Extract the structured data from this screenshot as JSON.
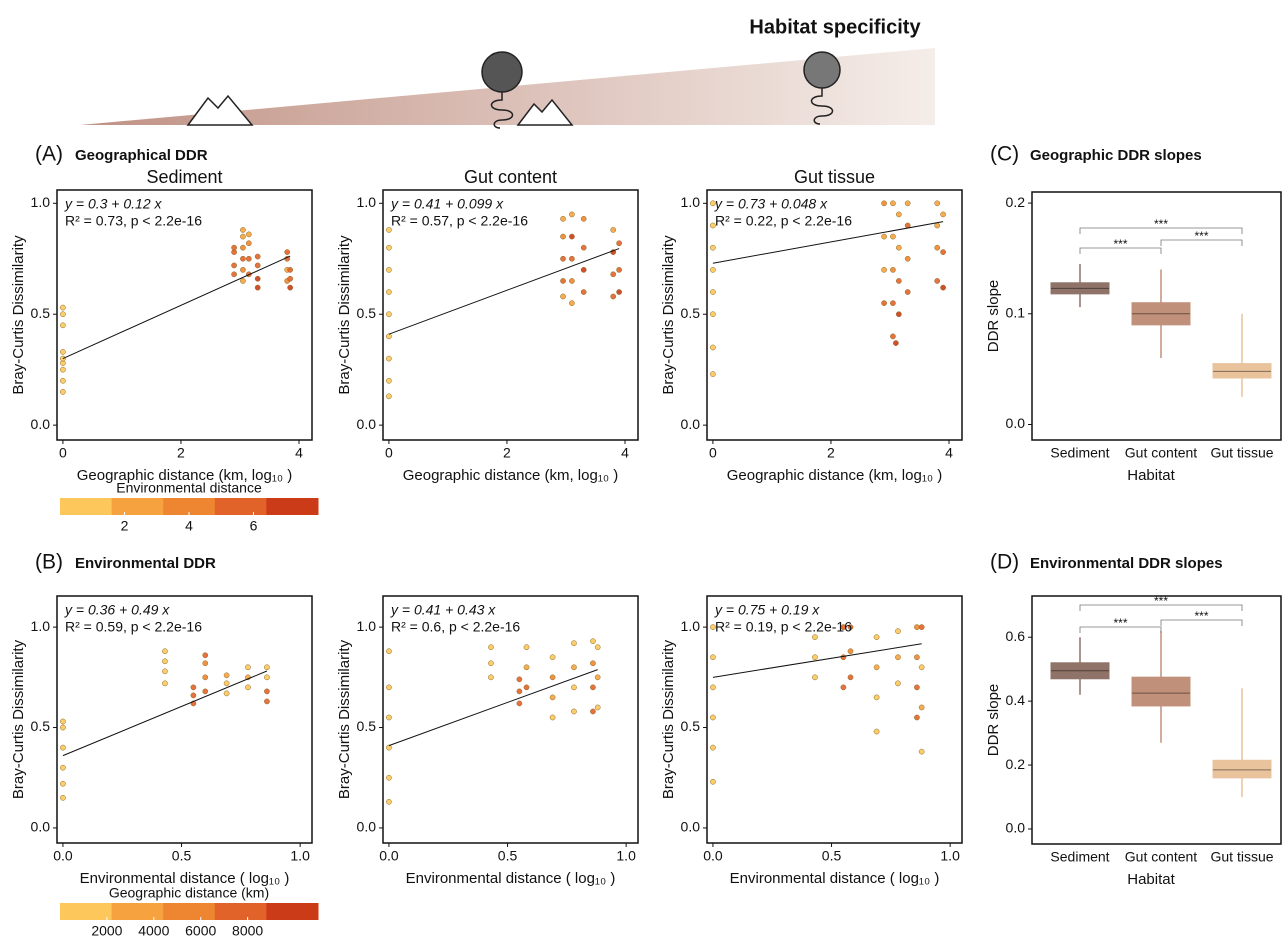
{
  "header": {
    "title": "Habitat specificity"
  },
  "panels": [
    {
      "letter": "(A)",
      "title": "Geographical DDR"
    },
    {
      "letter": "(B)",
      "title": "Environmental DDR"
    },
    {
      "letter": "(C)",
      "title": "Geographic DDR slopes"
    },
    {
      "letter": "(D)",
      "title": "Environmental DDR slopes"
    }
  ],
  "colorbars": [
    {
      "title": "Environmental distance",
      "lim": [
        0,
        8
      ],
      "ticks": [
        2,
        4,
        6
      ],
      "colors": [
        "#fdc75c",
        "#f6a33f",
        "#ee8530",
        "#e2632a",
        "#cc3b17"
      ]
    },
    {
      "title": "Geographic distance (km)",
      "lim": [
        0,
        11000
      ],
      "ticks": [
        2000,
        4000,
        6000,
        8000
      ],
      "colors": [
        "#fdc75c",
        "#f6a33f",
        "#ee8530",
        "#e2632a",
        "#cc3b17"
      ]
    }
  ],
  "chart_data": [
    {
      "type": "scatter",
      "title": "Sediment",
      "xlabel": "Geographic distance (km, log₁₀ )",
      "ylabel": "Bray-Curtis Dissimilarity",
      "annotations": [
        "y = 0.3 + 0.12 x",
        "R² = 0.73, p < 2.2e-16"
      ],
      "fit": {
        "intercept": 0.3,
        "slope": 0.12
      },
      "xlim": [
        -0.1,
        4.22
      ],
      "ylim": [
        -0.067,
        1.06
      ],
      "xticks": [
        0,
        2,
        4
      ],
      "yticks": [
        {
          "value": 0,
          "label": "0.0"
        },
        0.5,
        {
          "value": 1,
          "label": "1.0"
        }
      ],
      "x": [
        0,
        0,
        0,
        0,
        0,
        0,
        0,
        0,
        0,
        2.9,
        2.9,
        2.9,
        2.9,
        3.05,
        3.05,
        3.05,
        3.05,
        3.05,
        3.05,
        3.15,
        3.15,
        3.15,
        3.15,
        3.3,
        3.3,
        3.3,
        3.3,
        3.8,
        3.8,
        3.8,
        3.8,
        3.85,
        3.85,
        3.85
      ],
      "values": [
        0.15,
        0.2,
        0.25,
        0.28,
        0.3,
        0.33,
        0.45,
        0.5,
        0.53,
        0.68,
        0.72,
        0.78,
        0.8,
        0.65,
        0.7,
        0.75,
        0.8,
        0.85,
        0.88,
        0.68,
        0.75,
        0.82,
        0.86,
        0.62,
        0.66,
        0.72,
        0.76,
        0.65,
        0.7,
        0.75,
        0.78,
        0.62,
        0.66,
        0.7
      ],
      "color_values": [
        1,
        1,
        1,
        1,
        1,
        1,
        1,
        1,
        1,
        5,
        6,
        5,
        6,
        3,
        4,
        5,
        4,
        3,
        2,
        6,
        5,
        4,
        3,
        7,
        7,
        6,
        5,
        4,
        3,
        5,
        6,
        7,
        6,
        5
      ]
    },
    {
      "type": "scatter",
      "title": "Gut content",
      "xlabel": "Geographic distance (km, log₁₀ )",
      "ylabel": "Bray-Curtis Dissimilarity",
      "annotations": [
        "y = 0.41 + 0.099 x",
        "R² = 0.57, p < 2.2e-16"
      ],
      "fit": {
        "intercept": 0.41,
        "slope": 0.099
      },
      "xlim": [
        -0.1,
        4.22
      ],
      "ylim": [
        -0.067,
        1.06
      ],
      "xticks": [
        0,
        2,
        4
      ],
      "yticks": [
        {
          "value": 0,
          "label": "0.0"
        },
        0.5,
        {
          "value": 1,
          "label": "1.0"
        }
      ],
      "x": [
        0,
        0,
        0,
        0,
        0,
        0,
        0,
        0,
        0,
        2.95,
        2.95,
        2.95,
        2.95,
        2.95,
        3.1,
        3.1,
        3.1,
        3.1,
        3.1,
        3.3,
        3.3,
        3.3,
        3.3,
        3.8,
        3.8,
        3.8,
        3.8,
        3.9,
        3.9,
        3.9
      ],
      "values": [
        0.13,
        0.2,
        0.3,
        0.4,
        0.5,
        0.6,
        0.7,
        0.8,
        0.88,
        0.58,
        0.65,
        0.75,
        0.85,
        0.93,
        0.55,
        0.65,
        0.75,
        0.85,
        0.95,
        0.6,
        0.7,
        0.8,
        0.93,
        0.58,
        0.68,
        0.78,
        0.88,
        0.6,
        0.7,
        0.82
      ],
      "color_values": [
        1,
        1,
        1,
        1,
        1,
        1,
        1,
        1,
        1,
        3,
        5,
        6,
        4,
        2,
        2,
        4,
        6,
        7,
        3,
        6,
        7,
        5,
        4,
        5,
        6,
        7,
        3,
        7,
        6,
        5
      ]
    },
    {
      "type": "scatter",
      "title": "Gut tissue",
      "xlabel": "Geographic distance (km, log₁₀ )",
      "ylabel": "Bray-Curtis Dissimilarity",
      "annotations": [
        "y = 0.73 + 0.048 x",
        "R² = 0.22, p < 2.2e-16"
      ],
      "fit": {
        "intercept": 0.73,
        "slope": 0.048
      },
      "xlim": [
        -0.1,
        4.22
      ],
      "ylim": [
        -0.067,
        1.06
      ],
      "xticks": [
        0,
        2,
        4
      ],
      "yticks": [
        {
          "value": 0,
          "label": "0.0"
        },
        0.5,
        {
          "value": 1,
          "label": "1.0"
        }
      ],
      "x": [
        0,
        0,
        0,
        0,
        0,
        0,
        0,
        0,
        2.9,
        2.9,
        2.9,
        2.9,
        3.05,
        3.05,
        3.05,
        3.05,
        3.05,
        3.1,
        3.15,
        3.15,
        3.15,
        3.15,
        3.3,
        3.3,
        3.3,
        3.3,
        3.8,
        3.8,
        3.8,
        3.8,
        3.9,
        3.9,
        3.9
      ],
      "values": [
        0.23,
        0.35,
        0.5,
        0.6,
        0.7,
        0.8,
        0.9,
        1.0,
        0.55,
        0.7,
        0.85,
        1.0,
        0.4,
        0.55,
        0.7,
        0.85,
        1.0,
        0.37,
        0.5,
        0.65,
        0.8,
        0.95,
        0.6,
        0.75,
        0.9,
        1.0,
        0.65,
        0.8,
        0.9,
        1.0,
        0.62,
        0.78,
        0.95
      ],
      "color_values": [
        1,
        1,
        1,
        1,
        1,
        1,
        1,
        1,
        5,
        3,
        2,
        4,
        6,
        5,
        4,
        3,
        2,
        7,
        7,
        6,
        3,
        2,
        5,
        4,
        6,
        3,
        6,
        4,
        3,
        2,
        7,
        5,
        3
      ]
    },
    {
      "type": "scatter",
      "xlabel": "Environmental distance ( log₁₀ )",
      "ylabel": "Bray-Curtis Dissimilarity",
      "annotations": [
        "y = 0.36 + 0.49 x",
        "R² = 0.59, p < 2.2e-16"
      ],
      "fit": {
        "intercept": 0.36,
        "slope": 0.49
      },
      "xlim": [
        -0.025,
        1.05
      ],
      "ylim": [
        -0.075,
        1.155
      ],
      "xticks": [
        {
          "value": 0,
          "label": "0.0"
        },
        0.5,
        {
          "value": 1,
          "label": "1.0"
        }
      ],
      "yticks": [
        {
          "value": 0,
          "label": "0.0"
        },
        0.5,
        {
          "value": 1,
          "label": "1.0"
        }
      ],
      "x": [
        0,
        0,
        0,
        0,
        0,
        0,
        0.43,
        0.43,
        0.43,
        0.43,
        0.55,
        0.55,
        0.55,
        0.6,
        0.6,
        0.6,
        0.6,
        0.69,
        0.69,
        0.69,
        0.78,
        0.78,
        0.78,
        0.86,
        0.86,
        0.86,
        0.86
      ],
      "values": [
        0.15,
        0.22,
        0.3,
        0.4,
        0.5,
        0.53,
        0.72,
        0.78,
        0.83,
        0.88,
        0.62,
        0.66,
        0.7,
        0.68,
        0.75,
        0.82,
        0.86,
        0.67,
        0.72,
        0.76,
        0.7,
        0.75,
        0.8,
        0.63,
        0.68,
        0.75,
        0.8
      ],
      "color_values": [
        100,
        100,
        100,
        100,
        100,
        100,
        1500,
        1500,
        1500,
        1500,
        8000,
        8000,
        7500,
        7000,
        5000,
        6500,
        8000,
        1500,
        1500,
        2500,
        1500,
        3000,
        1500,
        8000,
        7000,
        1500,
        1500
      ]
    },
    {
      "type": "scatter",
      "xlabel": "Environmental distance ( log₁₀ )",
      "ylabel": "Bray-Curtis Dissimilarity",
      "annotations": [
        "y = 0.41 + 0.43 x",
        "R² = 0.6, p < 2.2e-16"
      ],
      "fit": {
        "intercept": 0.41,
        "slope": 0.43
      },
      "xlim": [
        -0.025,
        1.05
      ],
      "ylim": [
        -0.075,
        1.155
      ],
      "xticks": [
        {
          "value": 0,
          "label": "0.0"
        },
        0.5,
        {
          "value": 1,
          "label": "1.0"
        }
      ],
      "yticks": [
        {
          "value": 0,
          "label": "0.0"
        },
        0.5,
        {
          "value": 1,
          "label": "1.0"
        }
      ],
      "x": [
        0,
        0,
        0,
        0,
        0,
        0,
        0.43,
        0.43,
        0.43,
        0.55,
        0.55,
        0.55,
        0.58,
        0.58,
        0.58,
        0.69,
        0.69,
        0.69,
        0.69,
        0.78,
        0.78,
        0.78,
        0.78,
        0.86,
        0.86,
        0.86,
        0.86,
        0.88,
        0.88,
        0.88
      ],
      "values": [
        0.13,
        0.25,
        0.4,
        0.55,
        0.7,
        0.88,
        0.75,
        0.82,
        0.9,
        0.62,
        0.68,
        0.74,
        0.7,
        0.8,
        0.9,
        0.55,
        0.65,
        0.75,
        0.85,
        0.58,
        0.7,
        0.8,
        0.92,
        0.58,
        0.7,
        0.82,
        0.93,
        0.6,
        0.75,
        0.9
      ],
      "color_values": [
        100,
        100,
        100,
        100,
        100,
        100,
        1500,
        1500,
        1500,
        8000,
        7000,
        8000,
        7500,
        3000,
        1500,
        1500,
        3000,
        6000,
        1500,
        1500,
        1500,
        2500,
        1500,
        8000,
        7000,
        5000,
        1500,
        1500,
        2500,
        1500
      ]
    },
    {
      "type": "scatter",
      "xlabel": "Environmental distance ( log₁₀ )",
      "ylabel": "Bray-Curtis Dissimilarity",
      "annotations": [
        "y = 0.75 + 0.19 x",
        "R² = 0.19, p < 2.2e-16"
      ],
      "fit": {
        "intercept": 0.75,
        "slope": 0.19
      },
      "xlim": [
        -0.025,
        1.05
      ],
      "ylim": [
        -0.075,
        1.155
      ],
      "xticks": [
        {
          "value": 0,
          "label": "0.0"
        },
        0.5,
        {
          "value": 1,
          "label": "1.0"
        }
      ],
      "yticks": [
        {
          "value": 0,
          "label": "0.0"
        },
        0.5,
        {
          "value": 1,
          "label": "1.0"
        }
      ],
      "x": [
        0,
        0,
        0,
        0,
        0,
        0,
        0.43,
        0.43,
        0.43,
        0.55,
        0.55,
        0.55,
        0.58,
        0.58,
        0.58,
        0.69,
        0.69,
        0.69,
        0.69,
        0.78,
        0.78,
        0.78,
        0.86,
        0.86,
        0.86,
        0.86,
        0.88,
        0.88,
        0.88,
        0.88
      ],
      "values": [
        0.23,
        0.4,
        0.55,
        0.7,
        0.85,
        1.0,
        0.75,
        0.85,
        0.95,
        0.7,
        0.85,
        1.0,
        0.75,
        0.88,
        1.0,
        0.48,
        0.65,
        0.8,
        0.95,
        0.72,
        0.85,
        0.98,
        0.55,
        0.7,
        0.85,
        1.0,
        0.38,
        0.6,
        0.8,
        1.0
      ],
      "color_values": [
        100,
        100,
        100,
        100,
        100,
        100,
        1500,
        1500,
        1500,
        8000,
        7000,
        8000,
        7000,
        5000,
        8000,
        1500,
        1500,
        3000,
        1500,
        1500,
        2500,
        1500,
        7000,
        8000,
        6000,
        5000,
        1500,
        2500,
        1500,
        7000
      ]
    },
    {
      "type": "box",
      "xlabel": "Habitat",
      "ylabel": "DDR slope",
      "categories": [
        "Sediment",
        "Gut content",
        "Gut tissue"
      ],
      "colors": [
        "#8f7368",
        "#c1907a",
        "#e8c39c"
      ],
      "whisker_low": [
        0.106,
        0.06,
        0.025
      ],
      "q1": [
        0.118,
        0.09,
        0.042
      ],
      "median": [
        0.123,
        0.1,
        0.048
      ],
      "q3": [
        0.128,
        0.11,
        0.055
      ],
      "whisker_high": [
        0.145,
        0.14,
        0.1
      ],
      "significance_labels": [
        "***",
        "***",
        "***"
      ],
      "ylim": [
        -0.014,
        0.21
      ],
      "yticks": [
        {
          "value": 0,
          "label": "0.0"
        },
        0.1,
        0.2
      ]
    },
    {
      "type": "box",
      "xlabel": "Habitat",
      "ylabel": "DDR slope",
      "categories": [
        "Sediment",
        "Gut content",
        "Gut tissue"
      ],
      "colors": [
        "#8f7368",
        "#c1907a",
        "#e8c39c"
      ],
      "whisker_low": [
        0.42,
        0.27,
        0.1
      ],
      "q1": [
        0.47,
        0.385,
        0.16
      ],
      "median": [
        0.495,
        0.425,
        0.185
      ],
      "q3": [
        0.52,
        0.475,
        0.215
      ],
      "whisker_high": [
        0.6,
        0.62,
        0.44
      ],
      "significance_labels": [
        "***",
        "***",
        "***"
      ],
      "ylim": [
        -0.047,
        0.729
      ],
      "yticks": [
        {
          "value": 0,
          "label": "0.0"
        },
        0.2,
        0.4,
        0.6
      ]
    }
  ]
}
